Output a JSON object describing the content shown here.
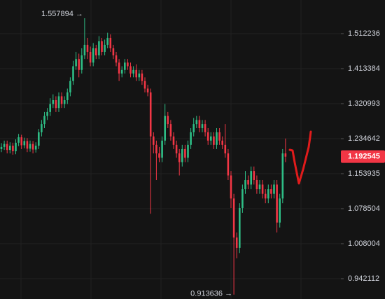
{
  "chart_data": {
    "type": "candlestick",
    "log_scale": true,
    "grid": true,
    "ylim": [
      0.9059,
      1.6137
    ],
    "yticks": [
      1.512236,
      1.413384,
      1.320993,
      1.234642,
      1.153935,
      1.078504,
      1.008004,
      0.942112
    ],
    "up_color": "#2ebd85",
    "down_color": "#f23645",
    "open": [
      1.21,
      1.215,
      1.222,
      1.208,
      1.218,
      1.205,
      1.225,
      1.238,
      1.219,
      1.229,
      1.211,
      1.222,
      1.209,
      1.218,
      1.25,
      1.27,
      1.29,
      1.3,
      1.32,
      1.33,
      1.31,
      1.34,
      1.32,
      1.33,
      1.35,
      1.38,
      1.42,
      1.44,
      1.41,
      1.45,
      1.48,
      1.46,
      1.43,
      1.47,
      1.45,
      1.49,
      1.46,
      1.48,
      1.5,
      1.47,
      1.45,
      1.43,
      1.4,
      1.41,
      1.43,
      1.42,
      1.4,
      1.41,
      1.39,
      1.4,
      1.38,
      1.36,
      1.35,
      1.24,
      1.22,
      1.2,
      1.19,
      1.23,
      1.29,
      1.27,
      1.24,
      1.22,
      1.2,
      1.18,
      1.21,
      1.19,
      1.22,
      1.25,
      1.27,
      1.28,
      1.26,
      1.27,
      1.25,
      1.23,
      1.24,
      1.22,
      1.25,
      1.23,
      1.22,
      1.2,
      1.15,
      1.1,
      1.02,
      1.0,
      1.08,
      1.12,
      1.14,
      1.13,
      1.16,
      1.14,
      1.12,
      1.13,
      1.11,
      1.1,
      1.12,
      1.11,
      1.13,
      1.05,
      1.1,
      1.2
    ],
    "high": [
      1.224,
      1.23,
      1.23,
      1.226,
      1.225,
      1.233,
      1.246,
      1.244,
      1.237,
      1.236,
      1.23,
      1.229,
      1.226,
      1.258,
      1.28,
      1.3,
      1.31,
      1.335,
      1.345,
      1.34,
      1.35,
      1.35,
      1.34,
      1.36,
      1.39,
      1.435,
      1.46,
      1.455,
      1.47,
      1.557894,
      1.5,
      1.475,
      1.485,
      1.48,
      1.505,
      1.5,
      1.495,
      1.515,
      1.51,
      1.48,
      1.46,
      1.44,
      1.42,
      1.44,
      1.44,
      1.43,
      1.42,
      1.425,
      1.41,
      1.41,
      1.39,
      1.37,
      1.36,
      1.25,
      1.23,
      1.215,
      1.24,
      1.32,
      1.3,
      1.28,
      1.25,
      1.23,
      1.21,
      1.22,
      1.22,
      1.23,
      1.26,
      1.285,
      1.29,
      1.29,
      1.28,
      1.28,
      1.26,
      1.25,
      1.25,
      1.26,
      1.26,
      1.24,
      1.27,
      1.21,
      1.16,
      1.11,
      1.03,
      1.09,
      1.13,
      1.16,
      1.15,
      1.17,
      1.17,
      1.15,
      1.14,
      1.14,
      1.12,
      1.13,
      1.13,
      1.14,
      1.14,
      1.11,
      1.21,
      1.235
    ],
    "low": [
      1.203,
      1.208,
      1.2,
      1.2,
      1.197,
      1.198,
      1.217,
      1.21,
      1.212,
      1.203,
      1.204,
      1.2,
      1.202,
      1.21,
      1.24,
      1.26,
      1.28,
      1.29,
      1.31,
      1.3,
      1.3,
      1.31,
      1.31,
      1.32,
      1.34,
      1.37,
      1.41,
      1.39,
      1.4,
      1.44,
      1.44,
      1.42,
      1.42,
      1.44,
      1.44,
      1.45,
      1.45,
      1.47,
      1.46,
      1.44,
      1.42,
      1.38,
      1.39,
      1.4,
      1.41,
      1.39,
      1.39,
      1.38,
      1.38,
      1.37,
      1.35,
      1.34,
      1.068,
      1.2,
      1.14,
      1.18,
      1.18,
      1.22,
      1.26,
      1.23,
      1.21,
      1.19,
      1.15,
      1.17,
      1.18,
      1.18,
      1.21,
      1.24,
      1.26,
      1.25,
      1.25,
      1.24,
      1.22,
      1.22,
      1.21,
      1.21,
      1.22,
      1.21,
      1.19,
      1.14,
      1.08,
      0.913636,
      0.98,
      0.99,
      1.07,
      1.11,
      1.12,
      1.12,
      1.13,
      1.11,
      1.11,
      1.1,
      1.09,
      1.09,
      1.1,
      1.1,
      1.03,
      1.04,
      1.09,
      1.18
    ],
    "close": [
      1.215,
      1.222,
      1.208,
      1.218,
      1.205,
      1.225,
      1.238,
      1.219,
      1.229,
      1.211,
      1.222,
      1.209,
      1.218,
      1.25,
      1.27,
      1.29,
      1.3,
      1.32,
      1.33,
      1.31,
      1.34,
      1.32,
      1.33,
      1.35,
      1.38,
      1.42,
      1.44,
      1.41,
      1.45,
      1.48,
      1.46,
      1.43,
      1.47,
      1.45,
      1.49,
      1.46,
      1.48,
      1.5,
      1.47,
      1.45,
      1.43,
      1.4,
      1.41,
      1.43,
      1.42,
      1.4,
      1.41,
      1.39,
      1.4,
      1.38,
      1.36,
      1.35,
      1.24,
      1.22,
      1.2,
      1.19,
      1.23,
      1.29,
      1.27,
      1.24,
      1.22,
      1.2,
      1.18,
      1.21,
      1.19,
      1.22,
      1.25,
      1.27,
      1.28,
      1.26,
      1.27,
      1.25,
      1.23,
      1.24,
      1.22,
      1.25,
      1.23,
      1.22,
      1.2,
      1.15,
      1.1,
      1.02,
      1.0,
      1.08,
      1.12,
      1.14,
      1.13,
      1.16,
      1.14,
      1.12,
      1.13,
      1.11,
      1.1,
      1.12,
      1.11,
      1.13,
      1.05,
      1.1,
      1.2,
      1.1925
    ],
    "high_label": "1.557894 →",
    "low_label": "0.913636 →",
    "last_price": 1.192545
  }
}
